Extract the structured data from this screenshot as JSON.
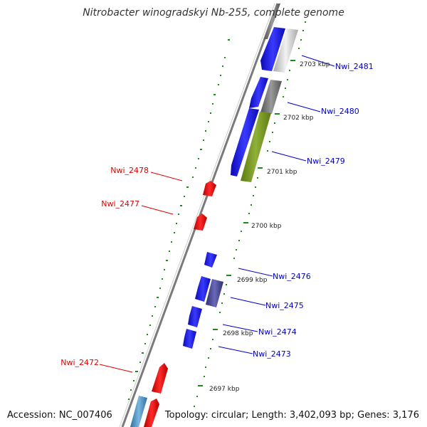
{
  "title": "Nitrobacter winogradskyi Nb-255, complete genome",
  "accession": "Accession: NC_007406",
  "topology": "Topology: circular; Length: 3,402,093 bp; Genes: 3,176",
  "colors": {
    "forward_label": "#0000c8",
    "reverse_label": "#e00000",
    "forward_gene": "#1a1af0",
    "reverse_gene": "#f01414",
    "tick": "#1e8a1e",
    "backbone": "#8a8a8a"
  },
  "ticks": [
    {
      "label": "2697 kbp"
    },
    {
      "label": "2698 kbp"
    },
    {
      "label": "2699 kbp"
    },
    {
      "label": "2700 kbp"
    },
    {
      "label": "2701 kbp"
    },
    {
      "label": "2702 kbp"
    },
    {
      "label": "2703 kbp"
    }
  ],
  "gene_labels": [
    {
      "id": "Nwi_2481",
      "strand": "forward"
    },
    {
      "id": "Nwi_2480",
      "strand": "forward"
    },
    {
      "id": "Nwi_2479",
      "strand": "forward"
    },
    {
      "id": "Nwi_2476",
      "strand": "forward"
    },
    {
      "id": "Nwi_2475",
      "strand": "forward"
    },
    {
      "id": "Nwi_2474",
      "strand": "forward"
    },
    {
      "id": "Nwi_2473",
      "strand": "forward"
    },
    {
      "id": "Nwi_2478",
      "strand": "reverse"
    },
    {
      "id": "Nwi_2477",
      "strand": "reverse"
    },
    {
      "id": "Nwi_2472",
      "strand": "reverse"
    }
  ]
}
